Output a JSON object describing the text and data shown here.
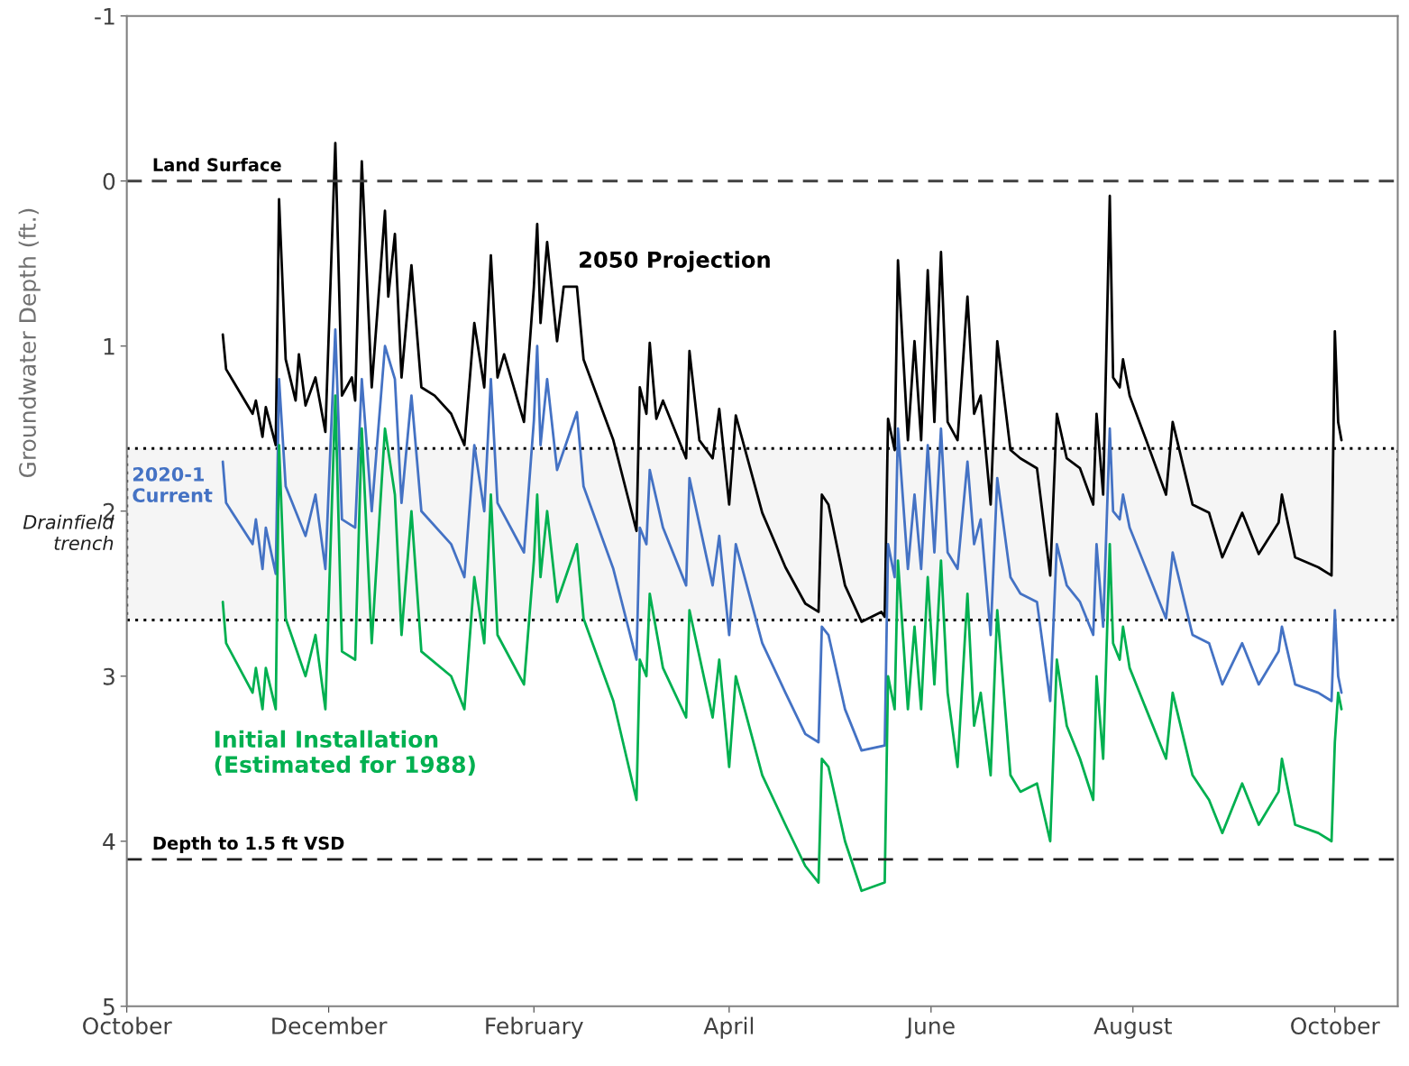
{
  "chart_data": {
    "type": "line",
    "ylabel": "Groundwater Depth (ft.)",
    "xlim": [
      "2020-10-01",
      "2021-10-20"
    ],
    "xticks": [
      {
        "value": "2020-10-01",
        "label": "October"
      },
      {
        "value": "2020-12-01",
        "label": "December"
      },
      {
        "value": "2021-02-01",
        "label": "February"
      },
      {
        "value": "2021-04-01",
        "label": "April"
      },
      {
        "value": "2021-06-01",
        "label": "June"
      },
      {
        "value": "2021-08-01",
        "label": "August"
      },
      {
        "value": "2021-10-01",
        "label": "October"
      }
    ],
    "ylim": [
      5,
      -1
    ],
    "yticks": [
      -1,
      0,
      1,
      2,
      3,
      4,
      5
    ],
    "grid": false,
    "legend": false,
    "marker": "none",
    "line_style": "solid",
    "ref_lines": [
      {
        "axis": "y",
        "value": 0,
        "label": "Land Surface",
        "color": "#404040",
        "line_style": "dashed"
      },
      {
        "axis": "y",
        "value": 4.11,
        "label": "Depth to 1.5 ft VSD",
        "color": "#202020",
        "line_style": "dashed"
      }
    ],
    "bands": [
      {
        "axis": "y",
        "from": 1.62,
        "to": 2.66,
        "label": "Drainfield\ntrench",
        "color": "#000000"
      }
    ],
    "series": [
      {
        "name": "2050 Projection",
        "color": "#000000",
        "x": [
          "2020-10-30",
          "2020-10-31",
          "2020-11-08",
          "2020-11-09",
          "2020-11-11",
          "2020-11-12",
          "2020-11-15",
          "2020-11-16",
          "2020-11-18",
          "2020-11-21",
          "2020-11-22",
          "2020-11-24",
          "2020-11-27",
          "2020-11-30",
          "2020-12-03",
          "2020-12-05",
          "2020-12-08",
          "2020-12-09",
          "2020-12-11",
          "2020-12-14",
          "2020-12-18",
          "2020-12-19",
          "2020-12-21",
          "2020-12-23",
          "2020-12-26",
          "2020-12-29",
          "2021-01-02",
          "2021-01-07",
          "2021-01-11",
          "2021-01-14",
          "2021-01-17",
          "2021-01-19",
          "2021-01-21",
          "2021-01-23",
          "2021-01-29",
          "2021-02-01",
          "2021-02-02",
          "2021-02-03",
          "2021-02-05",
          "2021-02-08",
          "2021-02-10",
          "2021-02-14",
          "2021-02-16",
          "2021-02-25",
          "2021-03-04",
          "2021-03-05",
          "2021-03-07",
          "2021-03-08",
          "2021-03-10",
          "2021-03-12",
          "2021-03-19",
          "2021-03-20",
          "2021-03-23",
          "2021-03-27",
          "2021-03-29",
          "2021-04-01",
          "2021-04-03",
          "2021-04-11",
          "2021-04-18",
          "2021-04-24",
          "2021-04-28",
          "2021-04-29",
          "2021-05-01",
          "2021-05-06",
          "2021-05-11",
          "2021-05-17",
          "2021-05-18",
          "2021-05-19",
          "2021-05-21",
          "2021-05-22",
          "2021-05-25",
          "2021-05-27",
          "2021-05-29",
          "2021-05-31",
          "2021-06-02",
          "2021-06-04",
          "2021-06-06",
          "2021-06-09",
          "2021-06-12",
          "2021-06-14",
          "2021-06-16",
          "2021-06-19",
          "2021-06-21",
          "2021-06-25",
          "2021-06-28",
          "2021-07-03",
          "2021-07-07",
          "2021-07-09",
          "2021-07-12",
          "2021-07-16",
          "2021-07-20",
          "2021-07-21",
          "2021-07-23",
          "2021-07-25",
          "2021-07-26",
          "2021-07-28",
          "2021-07-29",
          "2021-07-31",
          "2021-08-05",
          "2021-08-11",
          "2021-08-13",
          "2021-08-19",
          "2021-08-24",
          "2021-08-28",
          "2021-09-03",
          "2021-09-08",
          "2021-09-14",
          "2021-09-15",
          "2021-09-19",
          "2021-09-26",
          "2021-09-30",
          "2021-10-01",
          "2021-10-02",
          "2021-10-03"
        ],
        "values": [
          0.93,
          1.14,
          1.41,
          1.33,
          1.55,
          1.37,
          1.6,
          0.11,
          1.08,
          1.33,
          1.05,
          1.36,
          1.19,
          1.52,
          -0.23,
          1.3,
          1.19,
          1.33,
          -0.12,
          1.25,
          0.18,
          0.7,
          0.32,
          1.19,
          0.51,
          1.25,
          1.3,
          1.41,
          1.6,
          0.86,
          1.25,
          0.45,
          1.19,
          1.05,
          1.46,
          0.64,
          0.26,
          0.86,
          0.37,
          0.97,
          0.64,
          0.64,
          1.08,
          1.57,
          2.12,
          1.25,
          1.41,
          0.98,
          1.44,
          1.33,
          1.68,
          1.03,
          1.57,
          1.68,
          1.38,
          1.96,
          1.42,
          2.01,
          2.34,
          2.56,
          2.61,
          1.9,
          1.96,
          2.45,
          2.67,
          2.61,
          2.64,
          1.44,
          1.63,
          0.48,
          1.57,
          0.97,
          1.57,
          0.54,
          1.46,
          0.43,
          1.46,
          1.57,
          0.7,
          1.41,
          1.3,
          1.96,
          0.97,
          1.63,
          1.68,
          1.74,
          2.39,
          1.41,
          1.68,
          1.74,
          1.96,
          1.41,
          1.9,
          0.09,
          1.19,
          1.25,
          1.08,
          1.3,
          1.57,
          1.9,
          1.46,
          1.96,
          2.01,
          2.28,
          2.01,
          2.26,
          2.07,
          1.9,
          2.28,
          2.34,
          2.39,
          0.91,
          1.46,
          1.57
        ]
      },
      {
        "name": "2020-1\nCurrent",
        "color": "#4472c4",
        "x": [
          "2020-10-30",
          "2020-10-31",
          "2020-11-08",
          "2020-11-09",
          "2020-11-11",
          "2020-11-12",
          "2020-11-15",
          "2020-11-16",
          "2020-11-18",
          "2020-11-24",
          "2020-11-27",
          "2020-11-30",
          "2020-12-03",
          "2020-12-05",
          "2020-12-09",
          "2020-12-11",
          "2020-12-14",
          "2020-12-18",
          "2020-12-21",
          "2020-12-23",
          "2020-12-26",
          "2020-12-29",
          "2021-01-07",
          "2021-01-11",
          "2021-01-14",
          "2021-01-17",
          "2021-01-19",
          "2021-01-21",
          "2021-01-29",
          "2021-02-01",
          "2021-02-02",
          "2021-02-03",
          "2021-02-05",
          "2021-02-08",
          "2021-02-14",
          "2021-02-16",
          "2021-02-25",
          "2021-03-04",
          "2021-03-05",
          "2021-03-07",
          "2021-03-08",
          "2021-03-12",
          "2021-03-19",
          "2021-03-20",
          "2021-03-27",
          "2021-03-29",
          "2021-04-01",
          "2021-04-03",
          "2021-04-11",
          "2021-04-18",
          "2021-04-24",
          "2021-04-28",
          "2021-04-29",
          "2021-05-01",
          "2021-05-06",
          "2021-05-11",
          "2021-05-18",
          "2021-05-19",
          "2021-05-21",
          "2021-05-22",
          "2021-05-25",
          "2021-05-27",
          "2021-05-29",
          "2021-05-31",
          "2021-06-02",
          "2021-06-04",
          "2021-06-06",
          "2021-06-09",
          "2021-06-12",
          "2021-06-14",
          "2021-06-16",
          "2021-06-19",
          "2021-06-21",
          "2021-06-25",
          "2021-06-28",
          "2021-07-03",
          "2021-07-07",
          "2021-07-09",
          "2021-07-12",
          "2021-07-16",
          "2021-07-20",
          "2021-07-21",
          "2021-07-23",
          "2021-07-25",
          "2021-07-26",
          "2021-07-28",
          "2021-07-29",
          "2021-07-31",
          "2021-08-05",
          "2021-08-11",
          "2021-08-13",
          "2021-08-19",
          "2021-08-24",
          "2021-08-28",
          "2021-09-03",
          "2021-09-08",
          "2021-09-14",
          "2021-09-15",
          "2021-09-19",
          "2021-09-26",
          "2021-09-30",
          "2021-10-01",
          "2021-10-02",
          "2021-10-03"
        ],
        "values": [
          1.7,
          1.95,
          2.2,
          2.05,
          2.35,
          2.1,
          2.38,
          1.2,
          1.85,
          2.15,
          1.9,
          2.35,
          0.9,
          2.05,
          2.1,
          1.2,
          2.0,
          1.0,
          1.2,
          1.95,
          1.3,
          2.0,
          2.2,
          2.4,
          1.6,
          2.0,
          1.2,
          1.95,
          2.25,
          1.45,
          1.0,
          1.6,
          1.2,
          1.75,
          1.4,
          1.85,
          2.35,
          2.9,
          2.1,
          2.2,
          1.75,
          2.1,
          2.45,
          1.8,
          2.45,
          2.15,
          2.75,
          2.2,
          2.8,
          3.1,
          3.35,
          3.4,
          2.7,
          2.75,
          3.2,
          3.45,
          3.42,
          2.2,
          2.4,
          1.5,
          2.35,
          1.9,
          2.35,
          1.6,
          2.25,
          1.5,
          2.25,
          2.35,
          1.7,
          2.2,
          2.05,
          2.75,
          1.8,
          2.4,
          2.5,
          2.55,
          3.15,
          2.2,
          2.45,
          2.55,
          2.75,
          2.2,
          2.7,
          1.5,
          2.0,
          2.05,
          1.9,
          2.1,
          2.35,
          2.65,
          2.25,
          2.75,
          2.8,
          3.05,
          2.8,
          3.05,
          2.85,
          2.7,
          3.05,
          3.1,
          3.15,
          2.6,
          3.0,
          3.1
        ]
      },
      {
        "name": "Initial Installation\n(Estimated for 1988)",
        "color": "#00b050",
        "x": [
          "2020-10-30",
          "2020-10-31",
          "2020-11-08",
          "2020-11-09",
          "2020-11-11",
          "2020-11-12",
          "2020-11-15",
          "2020-11-16",
          "2020-11-18",
          "2020-11-24",
          "2020-11-27",
          "2020-11-30",
          "2020-12-03",
          "2020-12-05",
          "2020-12-09",
          "2020-12-11",
          "2020-12-14",
          "2020-12-18",
          "2020-12-21",
          "2020-12-23",
          "2020-12-26",
          "2020-12-29",
          "2021-01-07",
          "2021-01-11",
          "2021-01-14",
          "2021-01-17",
          "2021-01-19",
          "2021-01-21",
          "2021-01-29",
          "2021-02-01",
          "2021-02-02",
          "2021-02-03",
          "2021-02-05",
          "2021-02-08",
          "2021-02-14",
          "2021-02-16",
          "2021-02-25",
          "2021-03-04",
          "2021-03-05",
          "2021-03-07",
          "2021-03-08",
          "2021-03-12",
          "2021-03-19",
          "2021-03-20",
          "2021-03-27",
          "2021-03-29",
          "2021-04-01",
          "2021-04-03",
          "2021-04-11",
          "2021-04-18",
          "2021-04-24",
          "2021-04-28",
          "2021-04-29",
          "2021-05-01",
          "2021-05-06",
          "2021-05-11",
          "2021-05-18",
          "2021-05-19",
          "2021-05-21",
          "2021-05-22",
          "2021-05-25",
          "2021-05-27",
          "2021-05-29",
          "2021-05-31",
          "2021-06-02",
          "2021-06-04",
          "2021-06-06",
          "2021-06-09",
          "2021-06-12",
          "2021-06-14",
          "2021-06-16",
          "2021-06-19",
          "2021-06-21",
          "2021-06-25",
          "2021-06-28",
          "2021-07-03",
          "2021-07-07",
          "2021-07-09",
          "2021-07-12",
          "2021-07-16",
          "2021-07-20",
          "2021-07-21",
          "2021-07-23",
          "2021-07-25",
          "2021-07-26",
          "2021-07-28",
          "2021-07-29",
          "2021-07-31",
          "2021-08-05",
          "2021-08-11",
          "2021-08-13",
          "2021-08-19",
          "2021-08-24",
          "2021-08-28",
          "2021-09-03",
          "2021-09-08",
          "2021-09-14",
          "2021-09-15",
          "2021-09-19",
          "2021-09-26",
          "2021-09-30",
          "2021-10-01",
          "2021-10-02",
          "2021-10-03"
        ],
        "values": [
          2.55,
          2.8,
          3.1,
          2.95,
          3.2,
          2.95,
          3.2,
          1.6,
          2.65,
          3.0,
          2.75,
          3.2,
          1.3,
          2.85,
          2.9,
          1.5,
          2.8,
          1.5,
          1.9,
          2.75,
          2.0,
          2.85,
          3.0,
          3.2,
          2.4,
          2.8,
          1.9,
          2.75,
          3.05,
          2.3,
          1.9,
          2.4,
          2.0,
          2.55,
          2.2,
          2.65,
          3.15,
          3.75,
          2.9,
          3.0,
          2.5,
          2.95,
          3.25,
          2.6,
          3.25,
          2.9,
          3.55,
          3.0,
          3.6,
          3.9,
          4.15,
          4.25,
          3.5,
          3.55,
          4.0,
          4.3,
          4.25,
          3.0,
          3.2,
          2.3,
          3.2,
          2.7,
          3.2,
          2.4,
          3.05,
          2.3,
          3.1,
          3.55,
          2.5,
          3.3,
          3.1,
          3.6,
          2.6,
          3.6,
          3.7,
          3.65,
          4.0,
          2.9,
          3.3,
          3.5,
          3.75,
          3.0,
          3.5,
          2.2,
          2.8,
          2.9,
          2.7,
          2.95,
          3.2,
          3.5,
          3.1,
          3.6,
          3.75,
          3.95,
          3.65,
          3.9,
          3.7,
          3.5,
          3.9,
          3.95,
          4.0,
          3.4,
          3.1,
          3.2
        ]
      }
    ]
  }
}
